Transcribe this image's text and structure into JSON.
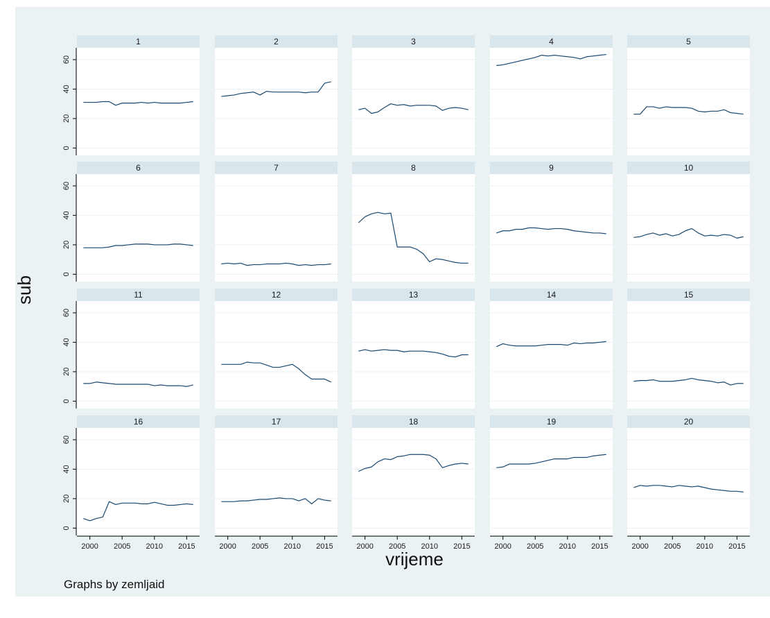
{
  "chart_data": {
    "type": "line",
    "layout": "small-multiples 4 rows x 5 columns",
    "xlabel": "vrijeme",
    "ylabel": "sub",
    "note": "Graphs by zemljaid",
    "x": [
      1999,
      2000,
      2001,
      2002,
      2003,
      2004,
      2005,
      2006,
      2007,
      2008,
      2009,
      2010,
      2011,
      2012,
      2013,
      2014,
      2015,
      2016
    ],
    "xlim": [
      1998,
      2017
    ],
    "ylim": [
      -5,
      68
    ],
    "xticks": [
      2000,
      2005,
      2010,
      2015
    ],
    "yticks": [
      0,
      20,
      40,
      60
    ],
    "grid": true,
    "colors": {
      "line": "#1a476f",
      "plot_bg": "#ffffff",
      "outer_bg": "#eaf2f3",
      "strip_bg": "#d9e6eb",
      "grid": "#eaf2f3"
    },
    "series": [
      {
        "name": "1",
        "values": [
          31,
          31,
          31,
          31.5,
          31.5,
          29,
          30.5,
          30.5,
          30.5,
          31,
          30.5,
          31,
          30.5,
          30.5,
          30.5,
          30.5,
          31,
          31.5
        ]
      },
      {
        "name": "2",
        "values": [
          35,
          35.5,
          36,
          37,
          37.5,
          38,
          36,
          38.5,
          38,
          38,
          38,
          38,
          38,
          37.5,
          38,
          38,
          44,
          45
        ]
      },
      {
        "name": "3",
        "values": [
          26,
          27,
          23.5,
          24.5,
          27.5,
          30,
          29,
          29.5,
          28.5,
          29,
          29,
          29,
          28.5,
          25.5,
          27,
          27.5,
          27,
          26
        ]
      },
      {
        "name": "4",
        "values": [
          56,
          56.5,
          57.5,
          58.5,
          59.5,
          60.5,
          61.5,
          63,
          62.5,
          63,
          62.5,
          62,
          61.5,
          60.5,
          62,
          62.5,
          63,
          63.5
        ]
      },
      {
        "name": "5",
        "values": [
          23,
          23,
          28,
          28,
          27,
          28,
          27.5,
          27.5,
          27.5,
          27,
          25,
          24.5,
          25,
          25,
          26,
          24,
          23.5,
          23
        ]
      },
      {
        "name": "6",
        "values": [
          18,
          18,
          18,
          18,
          18.5,
          19.5,
          19.5,
          20,
          20.5,
          20.5,
          20.5,
          20,
          20,
          20,
          20.5,
          20.5,
          20,
          19.5
        ]
      },
      {
        "name": "7",
        "values": [
          7,
          7.5,
          7,
          7.5,
          6,
          6.5,
          6.5,
          7,
          7,
          7,
          7.5,
          7,
          6,
          6.5,
          6,
          6.5,
          6.5,
          7
        ]
      },
      {
        "name": "8",
        "values": [
          35,
          39,
          41,
          42,
          41,
          41.5,
          18.5,
          18.5,
          18.5,
          17,
          14,
          8.5,
          10.5,
          10,
          9,
          8,
          7.5,
          7.5
        ]
      },
      {
        "name": "9",
        "values": [
          28,
          29.5,
          29.5,
          30.5,
          30.5,
          31.5,
          31.5,
          31,
          30.5,
          31,
          31,
          30.5,
          29.5,
          29,
          28.5,
          28,
          28,
          27.5
        ]
      },
      {
        "name": "10",
        "values": [
          25,
          25.5,
          27,
          28,
          26.5,
          27.5,
          26,
          27,
          29.5,
          31,
          28,
          26,
          26.5,
          26,
          27,
          26.5,
          24.5,
          25.5
        ]
      },
      {
        "name": "11",
        "values": [
          12,
          12,
          13,
          12.5,
          12,
          11.5,
          11.5,
          11.5,
          11.5,
          11.5,
          11.5,
          10.5,
          11,
          10.5,
          10.5,
          10.5,
          10,
          11
        ]
      },
      {
        "name": "12",
        "values": [
          25,
          25,
          25,
          25,
          26.5,
          26,
          26,
          24.5,
          23,
          23,
          24,
          25,
          22,
          18,
          15,
          15,
          15,
          13
        ]
      },
      {
        "name": "13",
        "values": [
          34,
          35,
          34,
          34.5,
          35,
          34.5,
          34.5,
          33.5,
          34,
          34,
          34,
          33.5,
          33,
          32,
          30.5,
          30,
          31.5,
          31.5
        ]
      },
      {
        "name": "14",
        "values": [
          37,
          39,
          38,
          37.5,
          37.5,
          37.5,
          37.5,
          38,
          38.5,
          38.5,
          38.5,
          38,
          39.5,
          39,
          39.5,
          39.5,
          40,
          40.5
        ]
      },
      {
        "name": "15",
        "values": [
          13.5,
          14,
          14,
          14.5,
          13.5,
          13.5,
          13.5,
          14,
          14.5,
          15.5,
          14.5,
          14,
          13.5,
          12.5,
          13,
          11,
          12,
          12
        ]
      },
      {
        "name": "16",
        "values": [
          6.5,
          5,
          6.5,
          7.5,
          18,
          16,
          17,
          17,
          17,
          16.5,
          16.5,
          17.5,
          16.5,
          15.5,
          15.5,
          16,
          16.5,
          16
        ]
      },
      {
        "name": "17",
        "values": [
          18,
          18,
          18,
          18.5,
          18.5,
          19,
          19.5,
          19.5,
          20,
          20.5,
          20,
          20,
          18.5,
          20,
          16.5,
          20,
          19,
          18.5
        ]
      },
      {
        "name": "18",
        "values": [
          38.5,
          40.5,
          41.5,
          45,
          47,
          46.5,
          48.5,
          49,
          50,
          50,
          50,
          49.5,
          47,
          41,
          42.5,
          43.5,
          44,
          43.5
        ]
      },
      {
        "name": "19",
        "values": [
          41,
          41.5,
          43.5,
          43.5,
          43.5,
          43.5,
          44,
          45,
          46,
          47,
          47,
          47,
          48,
          48,
          48,
          49,
          49.5,
          50
        ]
      },
      {
        "name": "20",
        "values": [
          27.5,
          29,
          28.5,
          29,
          29,
          28.5,
          28,
          29,
          28.5,
          28,
          28.5,
          27.5,
          26.5,
          26,
          25.5,
          25,
          25,
          24.5
        ]
      }
    ]
  }
}
